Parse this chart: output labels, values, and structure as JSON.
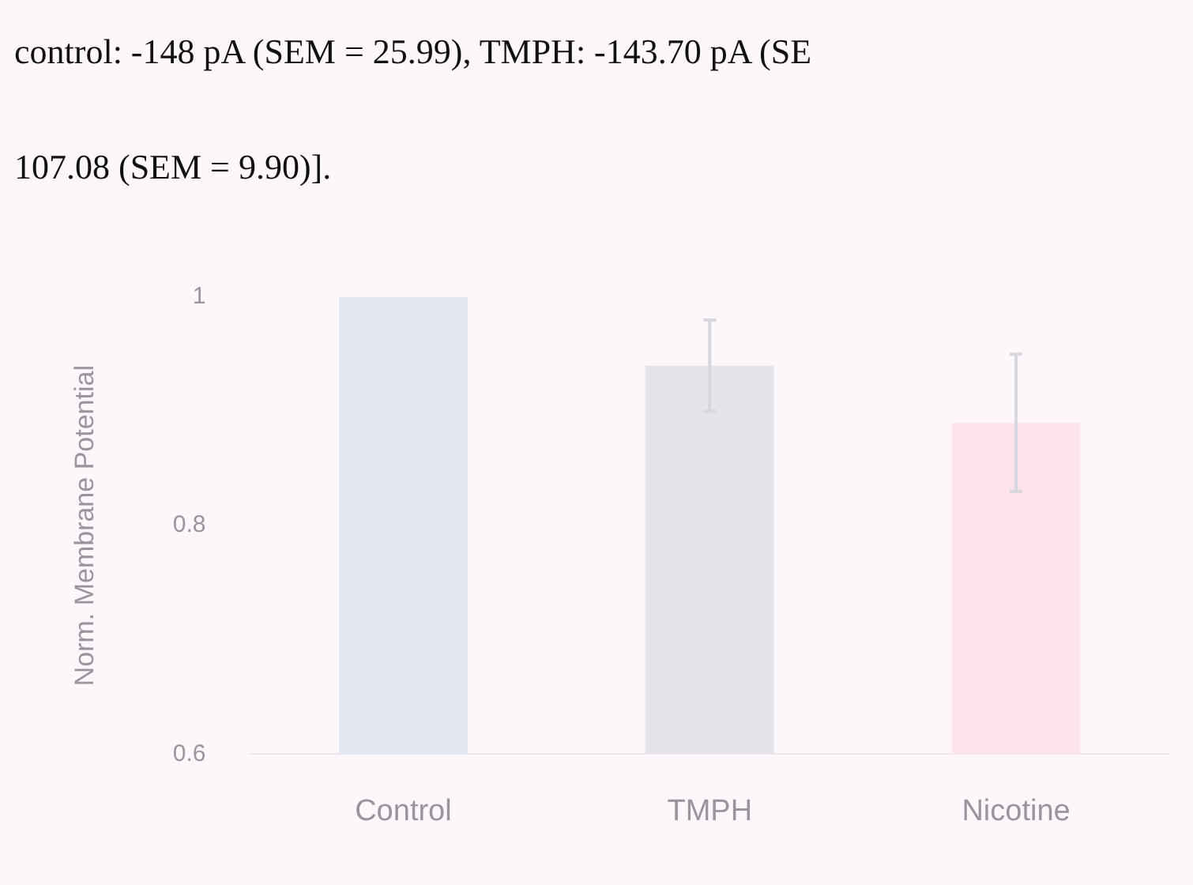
{
  "chart_data": {
    "type": "bar",
    "ylabel": "Norm. Membrane Potential",
    "annotations": [
      "control: -148 pA (SEM = 25.99), TMPH: -143.70 pA (SE",
      "107.08 (SEM = 9.90)]."
    ],
    "categories": [
      "Control",
      "TMPH",
      "Nicotine"
    ],
    "values": [
      1.0,
      0.94,
      0.89
    ],
    "errors": [
      null,
      0.04,
      0.06
    ],
    "colors": [
      "#e4e7f2",
      "#e5e4ea",
      "#fde4ec"
    ],
    "ylim": [
      0.6,
      1
    ],
    "yticks": [
      0.6,
      0.8,
      1
    ],
    "grid": false,
    "legend": false
  }
}
